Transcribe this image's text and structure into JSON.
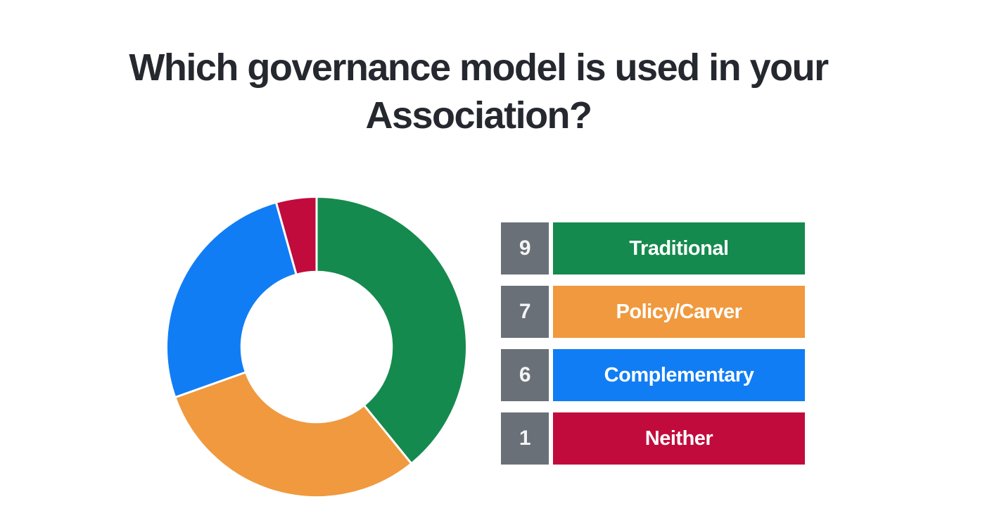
{
  "page": {
    "background_color": "#ffffff"
  },
  "title": {
    "text": "Which governance model is used in your Association?",
    "line1": "Which governance model is used in your",
    "line2": "Association?",
    "color": "#25282E"
  },
  "chart_data": {
    "type": "pie",
    "variant": "donut",
    "title": "Which governance model is used in your Association?",
    "categories": [
      "Traditional",
      "Policy/Carver",
      "Complementary",
      "Neither"
    ],
    "values": [
      9,
      7,
      6,
      1
    ],
    "total": 23,
    "colors": [
      "#158A4E",
      "#F0993E",
      "#117DF5",
      "#C10B3C"
    ],
    "start_angle_deg": 0,
    "direction": "clockwise",
    "inner_radius_ratio": 0.5,
    "slice_separator_color": "#ffffff",
    "legend_position": "right"
  },
  "legend": {
    "number_box_color": "#6A7077",
    "number_text_color": "#F3F4F5",
    "label_text_color": "#FFFFFF",
    "items": [
      {
        "value": "9",
        "label": "Traditional",
        "color": "#158A4E"
      },
      {
        "value": "7",
        "label": "Policy/Carver",
        "color": "#F0993E"
      },
      {
        "value": "6",
        "label": "Complementary",
        "color": "#117DF5"
      },
      {
        "value": "1",
        "label": "Neither",
        "color": "#C10B3C"
      }
    ]
  }
}
